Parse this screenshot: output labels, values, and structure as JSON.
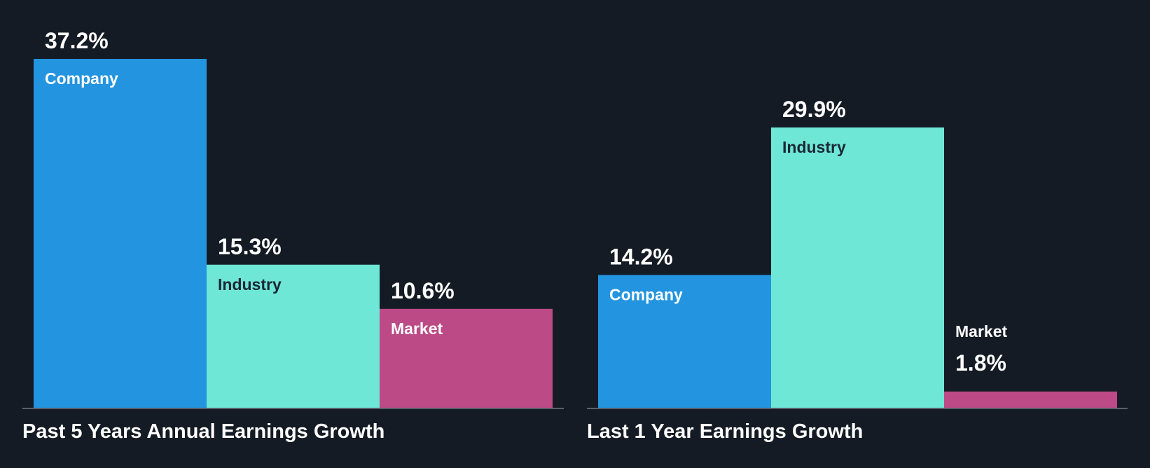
{
  "colors": {
    "background": "#151b24",
    "company": "#2394df",
    "industry": "#6ee7d7",
    "market": "#bb4a87",
    "baseline": "#5a606b",
    "value_text": "#ffffff",
    "label_on_company": "#ffffff",
    "label_on_industry": "#1b2733",
    "label_on_market": "#ffffff"
  },
  "chart_data": [
    {
      "type": "bar",
      "title": "Past 5 Years Annual Earnings Growth",
      "categories": [
        "Company",
        "Industry",
        "Market"
      ],
      "values": [
        37.2,
        15.3,
        10.6
      ],
      "value_labels": [
        "37.2%",
        "15.3%",
        "10.6%"
      ],
      "ylim": [
        0,
        37.2
      ],
      "grid": false,
      "legend": "none"
    },
    {
      "type": "bar",
      "title": "Last 1 Year Earnings Growth",
      "categories": [
        "Company",
        "Industry",
        "Market"
      ],
      "values": [
        14.2,
        29.9,
        1.8
      ],
      "value_labels": [
        "14.2%",
        "29.9%",
        "1.8%"
      ],
      "ylim": [
        0,
        37.2
      ],
      "grid": false,
      "legend": "none"
    }
  ]
}
